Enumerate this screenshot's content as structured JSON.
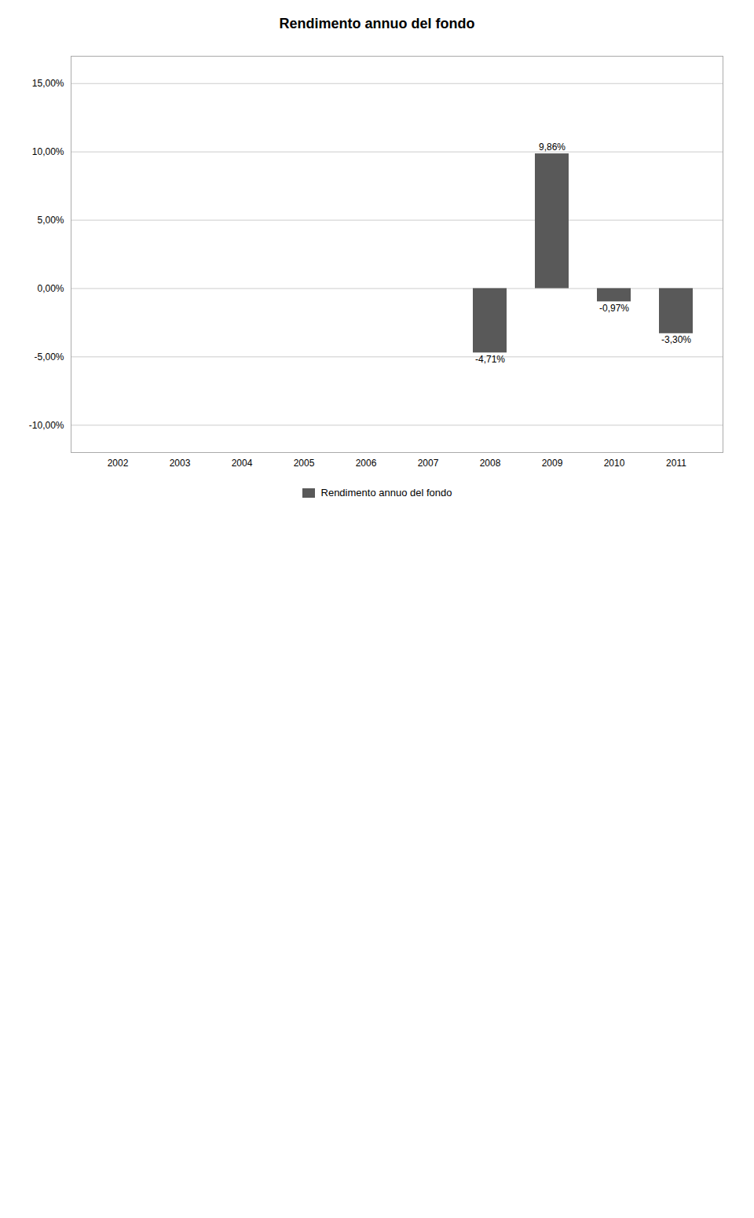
{
  "chart_data": {
    "type": "bar",
    "title": "Rendimento annuo del fondo",
    "categories": [
      "2002",
      "2003",
      "2004",
      "2005",
      "2006",
      "2007",
      "2008",
      "2009",
      "2010",
      "2011"
    ],
    "series": [
      {
        "name": "Rendimento annuo del fondo",
        "color": "#595959",
        "values": [
          0,
          0,
          0,
          0,
          0,
          0,
          -4.71,
          9.86,
          -0.97,
          -3.3
        ],
        "value_labels": [
          null,
          null,
          null,
          null,
          null,
          null,
          "-4,71%",
          "9,86%",
          "-0,97%",
          "-3,30%"
        ]
      }
    ],
    "ylim": [
      -12,
      17
    ],
    "yticks": [
      {
        "value": -10,
        "label": "-10,00%"
      },
      {
        "value": -5,
        "label": "-5,00%"
      },
      {
        "value": 0,
        "label": "0,00%"
      },
      {
        "value": 5,
        "label": "5,00%"
      },
      {
        "value": 10,
        "label": "10,00%"
      },
      {
        "value": 15,
        "label": "15,00%"
      }
    ],
    "grid": true,
    "legend": "bottom",
    "data_labels": true
  }
}
